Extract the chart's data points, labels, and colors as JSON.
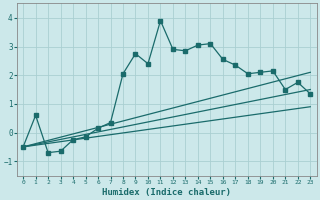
{
  "xlabel": "Humidex (Indice chaleur)",
  "background_color": "#cce8ea",
  "grid_color": "#aacfd2",
  "line_color": "#1a6b6b",
  "xlim": [
    -0.5,
    23.5
  ],
  "ylim": [
    -1.5,
    4.5
  ],
  "yticks": [
    -1,
    0,
    1,
    2,
    3,
    4
  ],
  "xticks": [
    0,
    1,
    2,
    3,
    4,
    5,
    6,
    7,
    8,
    9,
    10,
    11,
    12,
    13,
    14,
    15,
    16,
    17,
    18,
    19,
    20,
    21,
    22,
    23
  ],
  "main_x": [
    0,
    1,
    2,
    3,
    4,
    5,
    6,
    7,
    8,
    9,
    10,
    11,
    12,
    13,
    14,
    15,
    16,
    17,
    18,
    19,
    20,
    21,
    22,
    23
  ],
  "main_y": [
    -0.5,
    0.6,
    -0.7,
    -0.65,
    -0.25,
    -0.15,
    0.15,
    0.35,
    2.05,
    2.75,
    2.4,
    3.9,
    2.9,
    2.85,
    3.05,
    3.1,
    2.55,
    2.35,
    2.05,
    2.1,
    2.15,
    1.5,
    1.75,
    1.35
  ],
  "line1_x": [
    0,
    23
  ],
  "line1_y": [
    -0.5,
    2.1
  ],
  "line2_x": [
    0,
    23
  ],
  "line2_y": [
    -0.5,
    1.5
  ],
  "line3_x": [
    0,
    23
  ],
  "line3_y": [
    -0.5,
    0.9
  ]
}
